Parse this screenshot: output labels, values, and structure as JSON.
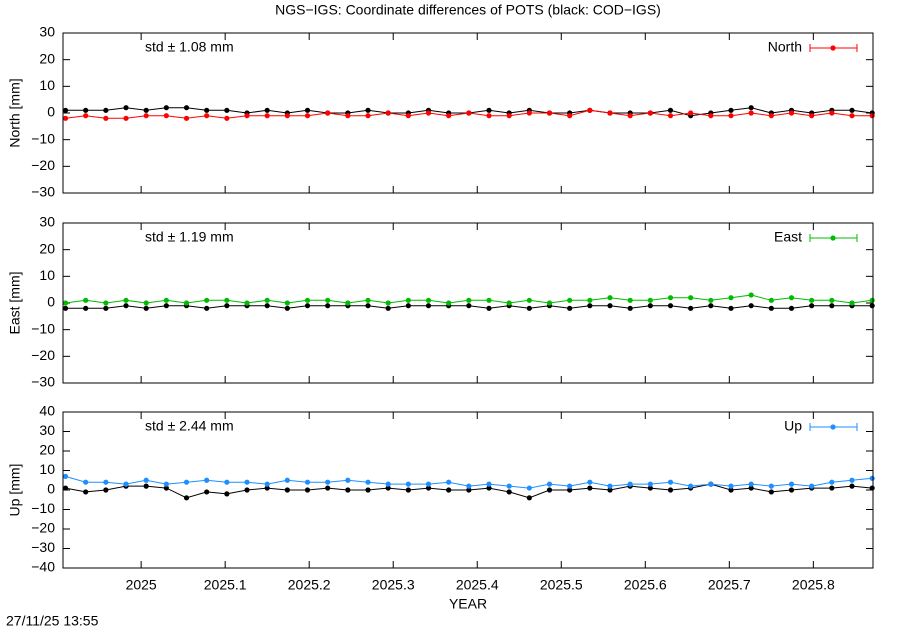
{
  "title": "NGS−IGS: Coordinate differences of POTS (black: COD−IGS)",
  "timestamp": "27/11/25 13:55",
  "chart_data": [
    {
      "type": "line",
      "ylabel": "North [mm]",
      "annotation": "std ± 1.08 mm",
      "legend": "upper right",
      "xlim": [
        2024.907,
        2025.871
      ],
      "ylim": [
        -30,
        30
      ],
      "yticks": [
        {
          "value": -30,
          "label": "−30"
        },
        {
          "value": -20,
          "label": "−20"
        },
        {
          "value": -10,
          "label": "−10"
        },
        0,
        10,
        20,
        30
      ],
      "x": [
        2024.91,
        2024.934,
        2024.958,
        2024.982,
        2025.006,
        2025.03,
        2025.054,
        2025.078,
        2025.102,
        2025.126,
        2025.15,
        2025.174,
        2025.198,
        2025.222,
        2025.246,
        2025.27,
        2025.294,
        2025.318,
        2025.342,
        2025.366,
        2025.39,
        2025.414,
        2025.438,
        2025.462,
        2025.486,
        2025.51,
        2025.534,
        2025.558,
        2025.582,
        2025.606,
        2025.63,
        2025.654,
        2025.678,
        2025.702,
        2025.726,
        2025.75,
        2025.774,
        2025.798,
        2025.822,
        2025.846,
        2025.87
      ],
      "series": [
        {
          "name": "North",
          "color": "#ff0000",
          "values": [
            -2,
            -1,
            -2,
            -2,
            -1,
            -1,
            -2,
            -1,
            -2,
            -1,
            -1,
            -1,
            -1,
            0,
            -1,
            -1,
            0,
            -1,
            0,
            -1,
            0,
            -1,
            -1,
            0,
            0,
            -1,
            1,
            0,
            -1,
            0,
            -1,
            0,
            -1,
            -1,
            0,
            -1,
            0,
            -1,
            0,
            -1,
            -1
          ]
        },
        {
          "color": "#000000",
          "values": [
            1,
            1,
            1,
            2,
            1,
            2,
            2,
            1,
            1,
            0,
            1,
            0,
            1,
            0,
            0,
            1,
            0,
            0,
            1,
            0,
            0,
            1,
            0,
            1,
            0,
            0,
            1,
            0,
            0,
            0,
            1,
            -1,
            0,
            1,
            2,
            0,
            1,
            0,
            1,
            1,
            0
          ]
        }
      ]
    },
    {
      "type": "line",
      "ylabel": "East [mm]",
      "annotation": "std ± 1.19 mm",
      "legend": "upper right",
      "xlim": [
        2024.907,
        2025.871
      ],
      "ylim": [
        -30,
        30
      ],
      "yticks": [
        {
          "value": -30,
          "label": "−30"
        },
        {
          "value": -20,
          "label": "−20"
        },
        {
          "value": -10,
          "label": "−10"
        },
        0,
        10,
        20,
        30
      ],
      "x": [
        2024.91,
        2024.934,
        2024.958,
        2024.982,
        2025.006,
        2025.03,
        2025.054,
        2025.078,
        2025.102,
        2025.126,
        2025.15,
        2025.174,
        2025.198,
        2025.222,
        2025.246,
        2025.27,
        2025.294,
        2025.318,
        2025.342,
        2025.366,
        2025.39,
        2025.414,
        2025.438,
        2025.462,
        2025.486,
        2025.51,
        2025.534,
        2025.558,
        2025.582,
        2025.606,
        2025.63,
        2025.654,
        2025.678,
        2025.702,
        2025.726,
        2025.75,
        2025.774,
        2025.798,
        2025.822,
        2025.846,
        2025.87
      ],
      "series": [
        {
          "name": "East",
          "color": "#00bb00",
          "values": [
            0,
            1,
            0,
            1,
            0,
            1,
            0,
            1,
            1,
            0,
            1,
            0,
            1,
            1,
            0,
            1,
            0,
            1,
            1,
            0,
            1,
            1,
            0,
            1,
            0,
            1,
            1,
            2,
            1,
            1,
            2,
            2,
            1,
            2,
            3,
            1,
            2,
            1,
            1,
            0,
            1
          ]
        },
        {
          "color": "#000000",
          "values": [
            -2,
            -2,
            -2,
            -1,
            -2,
            -1,
            -1,
            -2,
            -1,
            -1,
            -1,
            -2,
            -1,
            -1,
            -1,
            -1,
            -2,
            -1,
            -1,
            -1,
            -1,
            -2,
            -1,
            -2,
            -1,
            -2,
            -1,
            -1,
            -2,
            -1,
            -1,
            -2,
            -1,
            -2,
            -1,
            -2,
            -2,
            -1,
            -1,
            -1,
            -1
          ]
        }
      ]
    },
    {
      "type": "line",
      "ylabel": "Up [mm]",
      "annotation": "std ± 2.44 mm",
      "legend": "upper right",
      "xlabel": "YEAR",
      "xlim": [
        2024.907,
        2025.871
      ],
      "xticks": [
        2025,
        2025.1,
        2025.2,
        2025.3,
        2025.4,
        2025.5,
        2025.6,
        2025.7,
        2025.8
      ],
      "ylim": [
        -40,
        40
      ],
      "yticks": [
        {
          "value": -40,
          "label": "−40"
        },
        {
          "value": -30,
          "label": "−30"
        },
        {
          "value": -20,
          "label": "−20"
        },
        {
          "value": -10,
          "label": "−10"
        },
        0,
        10,
        20,
        30,
        40
      ],
      "x": [
        2024.91,
        2024.934,
        2024.958,
        2024.982,
        2025.006,
        2025.03,
        2025.054,
        2025.078,
        2025.102,
        2025.126,
        2025.15,
        2025.174,
        2025.198,
        2025.222,
        2025.246,
        2025.27,
        2025.294,
        2025.318,
        2025.342,
        2025.366,
        2025.39,
        2025.414,
        2025.438,
        2025.462,
        2025.486,
        2025.51,
        2025.534,
        2025.558,
        2025.582,
        2025.606,
        2025.63,
        2025.654,
        2025.678,
        2025.702,
        2025.726,
        2025.75,
        2025.774,
        2025.798,
        2025.822,
        2025.846,
        2025.87
      ],
      "series": [
        {
          "name": "Up",
          "color": "#1e8fff",
          "values": [
            7,
            4,
            4,
            3,
            5,
            3,
            4,
            5,
            4,
            4,
            3,
            5,
            4,
            4,
            5,
            4,
            3,
            3,
            3,
            4,
            2,
            3,
            2,
            1,
            3,
            2,
            4,
            2,
            3,
            3,
            4,
            2,
            3,
            2,
            3,
            2,
            3,
            2,
            4,
            5,
            6
          ]
        },
        {
          "color": "#000000",
          "values": [
            1,
            -1,
            0,
            2,
            2,
            1,
            -4,
            -1,
            -2,
            0,
            1,
            0,
            0,
            1,
            0,
            0,
            1,
            0,
            1,
            0,
            0,
            1,
            -1,
            -4,
            0,
            0,
            1,
            0,
            2,
            1,
            0,
            1,
            3,
            0,
            1,
            -1,
            0,
            1,
            1,
            2,
            1
          ]
        }
      ]
    }
  ]
}
